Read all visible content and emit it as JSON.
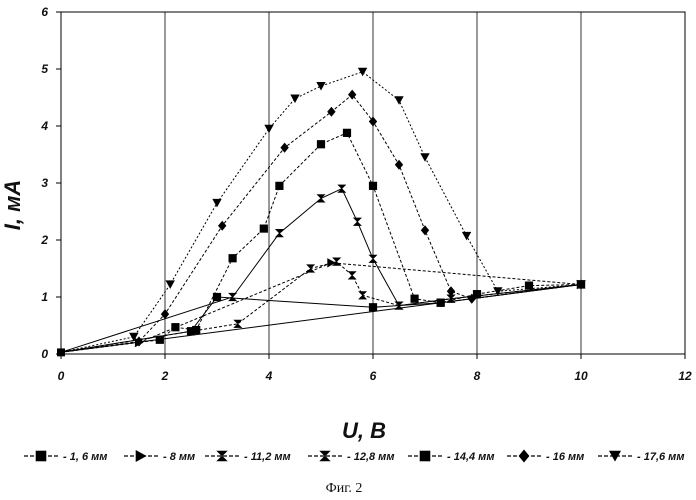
{
  "chart_data": {
    "type": "line",
    "xlabel": "U, В",
    "ylabel": "I, мА",
    "xlim": [
      0,
      12
    ],
    "ylim": [
      0,
      6
    ],
    "x_ticks": [
      "0",
      "2",
      "4",
      "6",
      "8",
      "10",
      "12"
    ],
    "y_ticks": [
      "0",
      "1",
      "2",
      "3",
      "4",
      "5",
      "6"
    ],
    "grid": "vertical",
    "legend_placement": "bottom",
    "baseline": {
      "x": [
        0,
        10
      ],
      "y": [
        0.03,
        1.22
      ]
    },
    "series": [
      {
        "name": "- 1, 6 мм",
        "marker": "square",
        "style": "dashed",
        "x": [
          0,
          1.9,
          2.2,
          2.6,
          3.3,
          3.9,
          4.2,
          5.0,
          5.5,
          6.0,
          6.8,
          7.3,
          8.0,
          9.0,
          10.0
        ],
        "y": [
          0.03,
          0.25,
          0.47,
          0.42,
          1.68,
          2.2,
          2.95,
          3.68,
          3.88,
          2.95,
          0.97,
          0.9,
          1.05,
          1.2,
          1.22
        ]
      },
      {
        "name": "- 8 мм",
        "marker": "triangle-right",
        "style": "dashed",
        "x": [
          1.5,
          5.2,
          10.0
        ],
        "y": [
          0.2,
          1.6,
          1.22
        ]
      },
      {
        "name": "- 11,2 мм",
        "marker": "bowtie",
        "style": "dashed",
        "x": [
          0,
          3.4,
          4.8,
          5.3,
          5.6,
          5.8,
          6.5,
          7.5,
          10.0
        ],
        "y": [
          0.03,
          0.53,
          1.5,
          1.62,
          1.38,
          1.03,
          0.85,
          0.97,
          1.22
        ]
      },
      {
        "name": "- 12,8 мм",
        "marker": "hourglass",
        "style": "solid",
        "x": [
          0,
          3.3,
          4.2,
          5.0,
          5.4,
          5.7,
          6.0,
          6.5,
          7.5,
          10.0
        ],
        "y": [
          0.03,
          1.0,
          2.12,
          2.73,
          2.9,
          2.32,
          1.67,
          0.85,
          0.97,
          1.22
        ]
      },
      {
        "name": "- 14,4 мм",
        "marker": "square",
        "style": "solid",
        "x": [
          0,
          2.5,
          3.0,
          6.0,
          7.3,
          10.0
        ],
        "y": [
          0.03,
          0.4,
          1.0,
          0.82,
          0.9,
          1.22
        ]
      },
      {
        "name": "- 16 мм",
        "marker": "diamond",
        "style": "dashed",
        "x": [
          0,
          1.5,
          2.0,
          3.1,
          4.3,
          5.2,
          5.6,
          6.0,
          6.5,
          7.0,
          7.5,
          7.9,
          10.0
        ],
        "y": [
          0.03,
          0.22,
          0.7,
          2.25,
          3.62,
          4.25,
          4.55,
          4.08,
          3.32,
          2.17,
          1.1,
          0.97,
          1.22
        ]
      },
      {
        "name": "- 17,6 мм",
        "marker": "triangle-down",
        "style": "mixed",
        "x": [
          0,
          1.4,
          2.1,
          3.0,
          4.0,
          4.5,
          5.0,
          5.8,
          6.5,
          7.0,
          7.8,
          8.4,
          10.0
        ],
        "y": [
          0.03,
          0.3,
          1.22,
          2.65,
          3.95,
          4.48,
          4.7,
          4.95,
          4.45,
          3.45,
          2.07,
          1.1,
          1.22
        ]
      }
    ]
  },
  "caption": "Фиг. 2"
}
